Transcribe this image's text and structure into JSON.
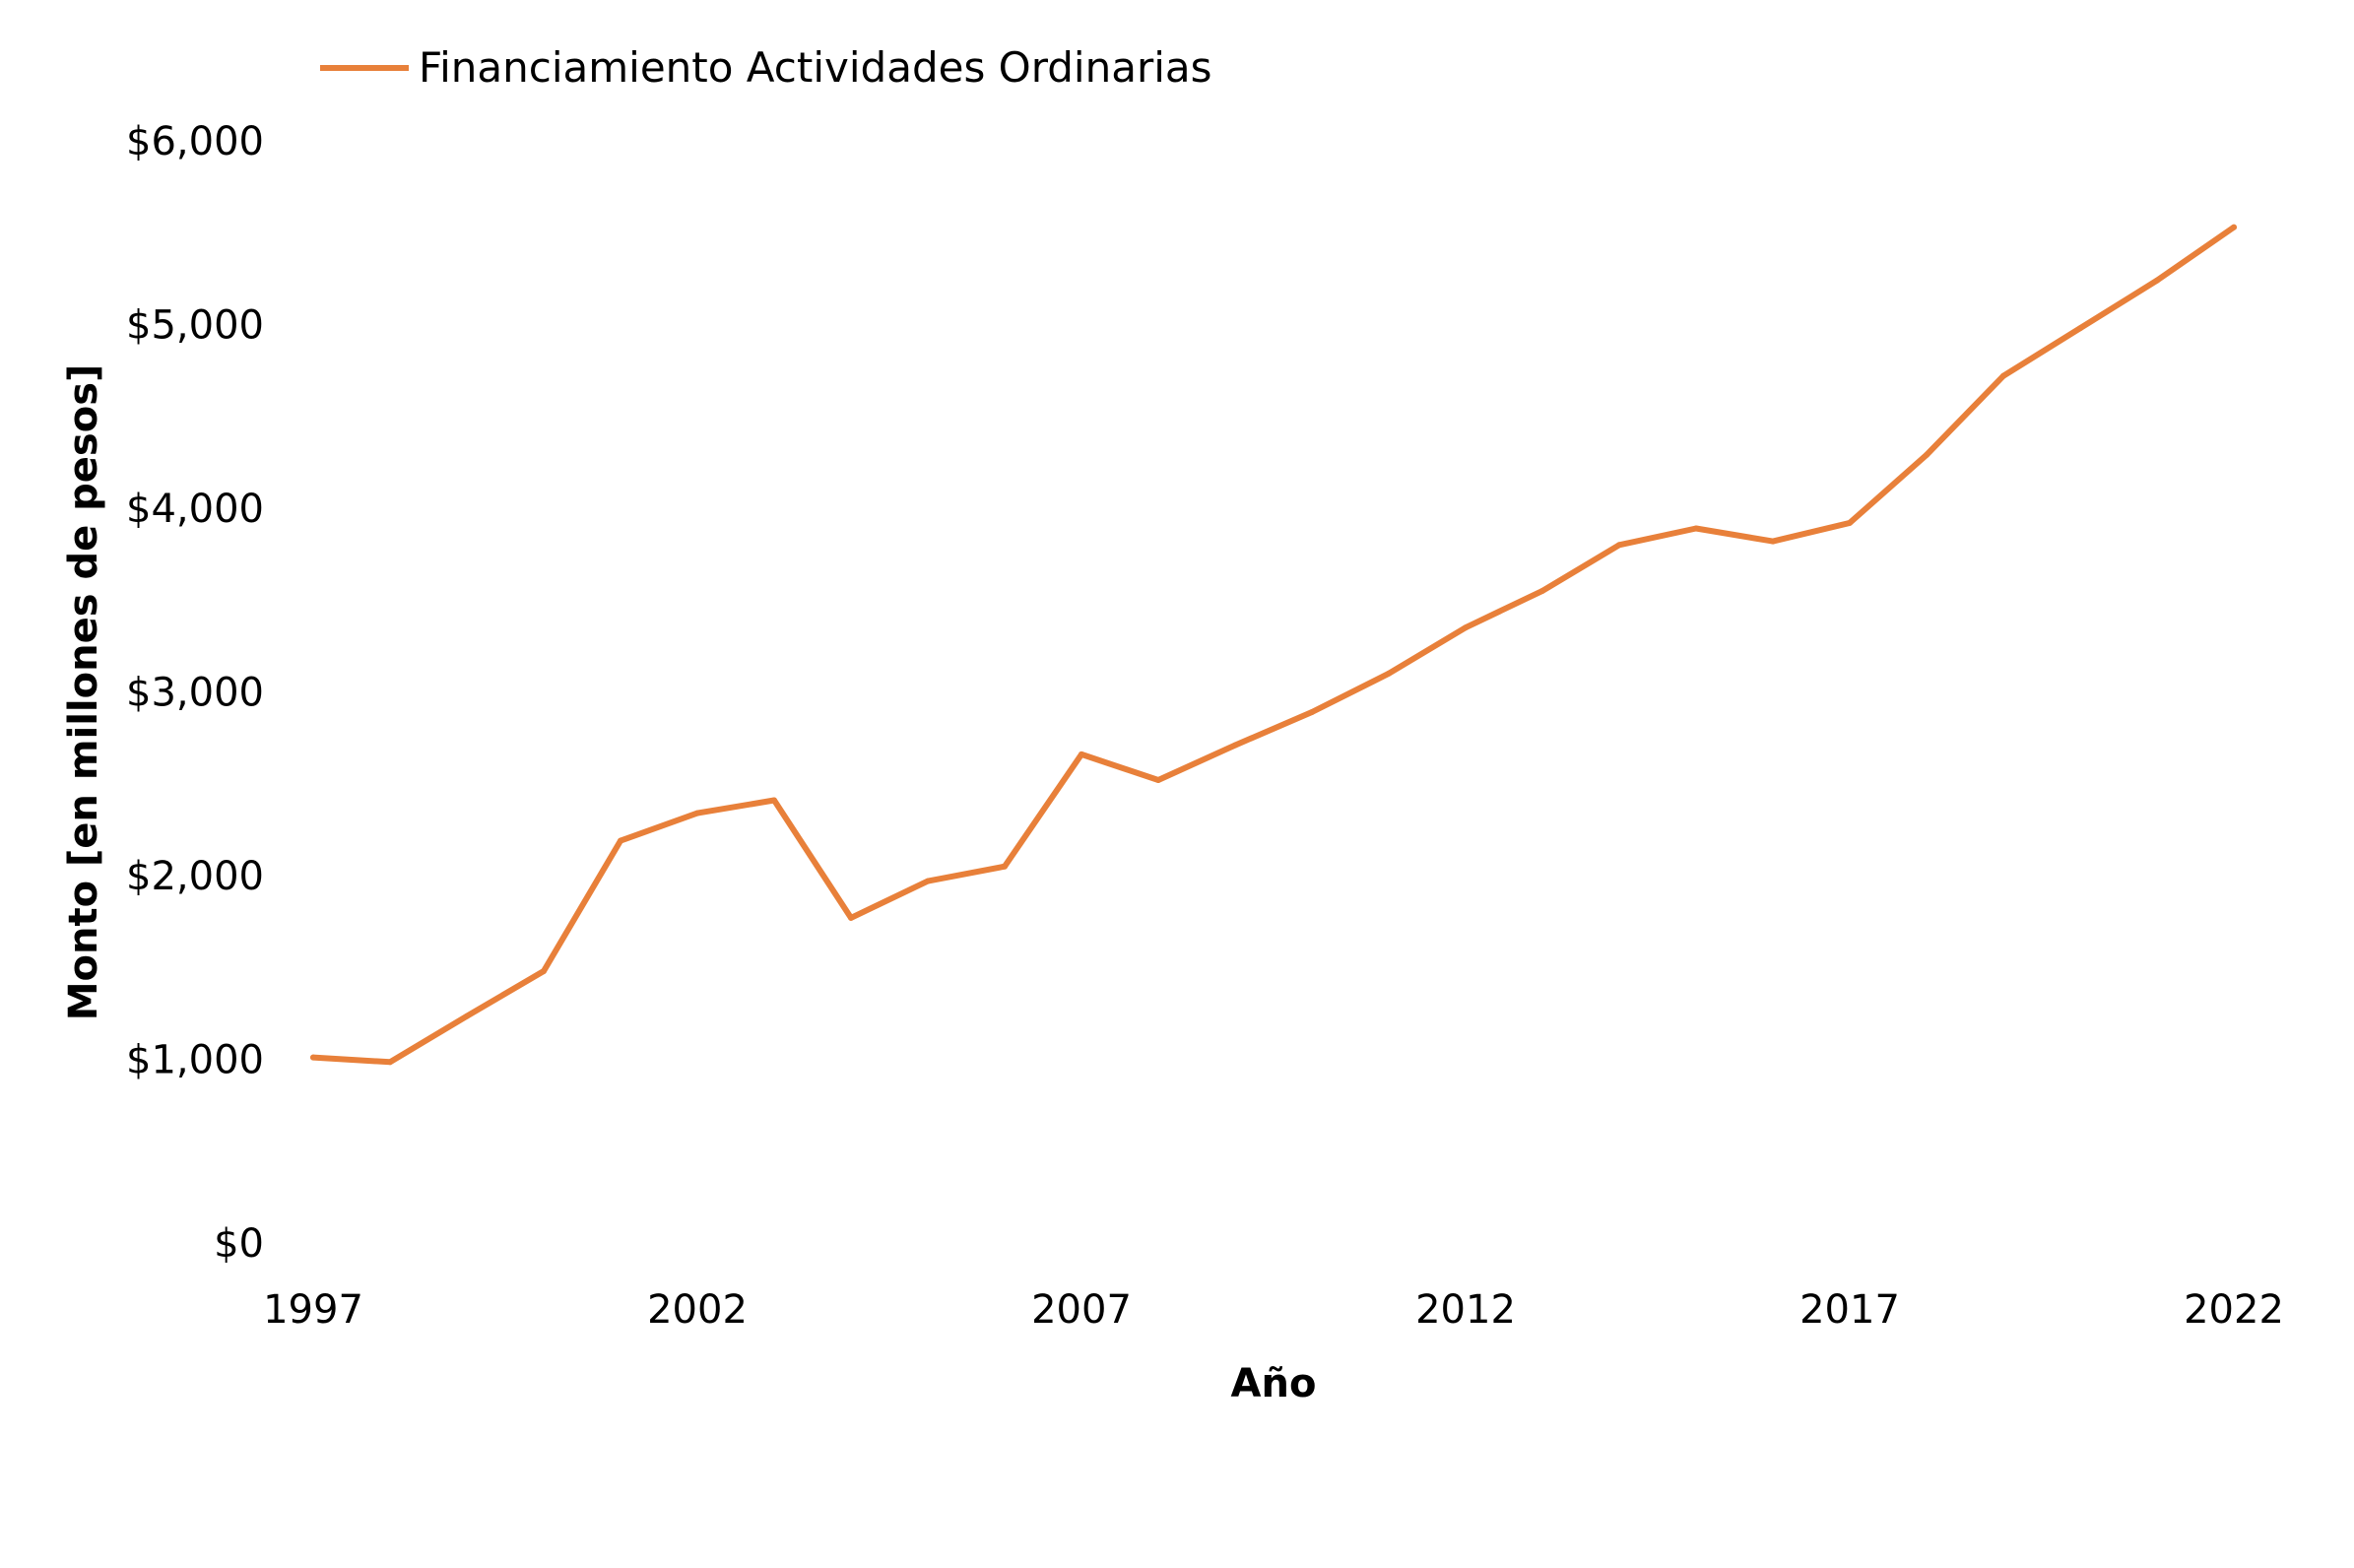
{
  "chart_data": {
    "type": "line",
    "title": "",
    "xlabel": "Año",
    "ylabel": "Monto [en millones de pesos]",
    "x": [
      1997,
      1998,
      1999,
      2000,
      2001,
      2002,
      2003,
      2004,
      2005,
      2006,
      2007,
      2008,
      2009,
      2010,
      2011,
      2012,
      2013,
      2014,
      2015,
      2016,
      2017,
      2018,
      2019,
      2020,
      2021,
      2022
    ],
    "series": [
      {
        "name": "Financiamiento Actividades Ordinarias",
        "color": "#e8803a",
        "values": [
          1010,
          985,
          1235,
          1480,
          2190,
          2340,
          2410,
          1770,
          1970,
          2050,
          2660,
          2520,
          2710,
          2890,
          3100,
          3350,
          3550,
          3800,
          3890,
          3820,
          3920,
          4290,
          4720,
          4980,
          5240,
          5530
        ]
      }
    ],
    "xticks": [
      1997,
      2002,
      2007,
      2012,
      2017,
      2022
    ],
    "xtick_labels": [
      "1997",
      "2002",
      "2007",
      "2012",
      "2017",
      "2022"
    ],
    "yticks": [
      0,
      1000,
      2000,
      3000,
      4000,
      5000,
      6000
    ],
    "ytick_labels": [
      "$0",
      "$1,000",
      "$2,000",
      "$3,000",
      "$4,000",
      "$5,000",
      "$6,000"
    ],
    "xlim": [
      1997,
      2022
    ],
    "ylim": [
      0,
      6000
    ],
    "grid": false,
    "legend_position": "top-left"
  }
}
